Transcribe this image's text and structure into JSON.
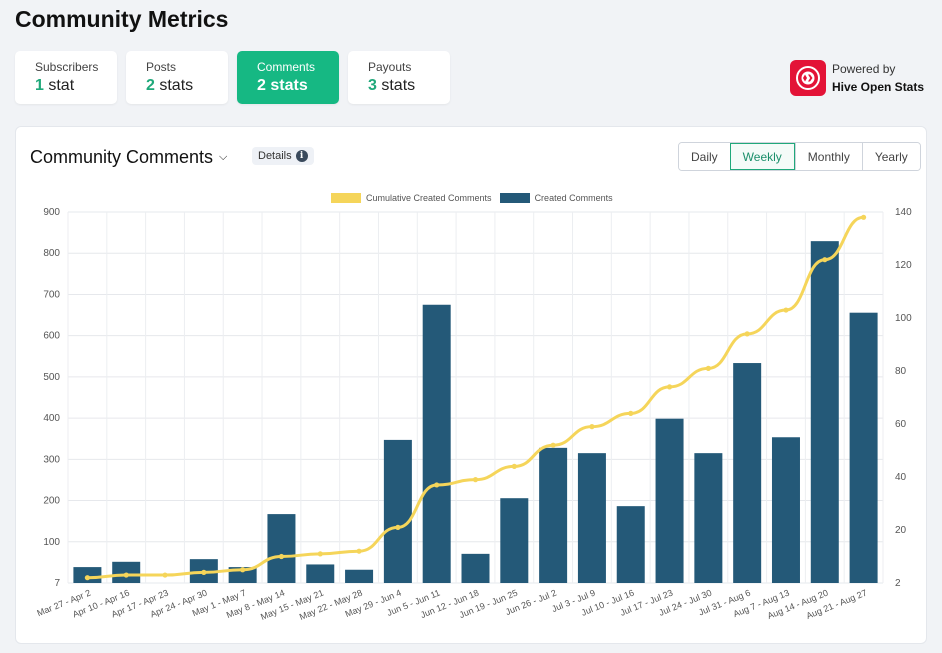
{
  "page": {
    "title": "Community Metrics"
  },
  "stat_tabs": [
    {
      "label": "Subscribers",
      "count": "1",
      "unit": "stat",
      "active": false
    },
    {
      "label": "Posts",
      "count": "2",
      "unit": "stats",
      "active": false
    },
    {
      "label": "Comments",
      "count": "2",
      "unit": "stats",
      "active": true
    },
    {
      "label": "Payouts",
      "count": "3",
      "unit": "stats",
      "active": false
    }
  ],
  "powered_by": {
    "prefix": "Powered by",
    "name": "Hive Open Stats"
  },
  "card": {
    "title": "Community Comments",
    "details_label": "Details",
    "periods": [
      "Daily",
      "Weekly",
      "Monthly",
      "Yearly"
    ],
    "active_period": "Weekly"
  },
  "colors": {
    "accent": "#16b883",
    "bar": "#245978",
    "line": "#f5d55a",
    "hive": "#e31337"
  },
  "chart_data": {
    "type": "bar",
    "categories": [
      "Mar 27 - Apr 2",
      "Apr 10 - Apr 16",
      "Apr 17 - Apr 23",
      "Apr 24 - Apr 30",
      "May 1 - May 7",
      "May 8 - May 14",
      "May 15 - May 21",
      "May 22 - May 28",
      "May 29 - Jun 4",
      "Jun 5 - Jun 11",
      "Jun 12 - Jun 18",
      "Jun 19 - Jun 25",
      "Jun 26 - Jul 2",
      "Jul 3 - Jul 9",
      "Jul 10 - Jul 16",
      "Jul 17 - Jul 23",
      "Jul 24 - Jul 30",
      "Jul 31 - Aug 6",
      "Aug 7 - Aug 13",
      "Aug 14 - Aug 20",
      "Aug 21 - Aug 27"
    ],
    "series": [
      {
        "name": "Created Comments",
        "type": "bar",
        "axis": "left",
        "values": [
          6,
          8,
          0,
          9,
          6,
          26,
          7,
          5,
          54,
          105,
          11,
          32,
          51,
          49,
          29,
          62,
          49,
          83,
          55,
          129,
          102
        ]
      },
      {
        "name": "Cumulative Created Comments",
        "type": "line",
        "axis": "right",
        "values": [
          2,
          3,
          3,
          4,
          5,
          10,
          11,
          12,
          21,
          37,
          39,
          44,
          52,
          59,
          64,
          74,
          81,
          94,
          103,
          122,
          138
        ]
      }
    ],
    "left_axis": {
      "ticks": [
        "7",
        "100",
        "200",
        "300",
        "400",
        "500",
        "600",
        "700",
        "800",
        "900"
      ]
    },
    "right_axis": {
      "ticks": [
        "2",
        "20",
        "40",
        "60",
        "80",
        "100",
        "120",
        "140"
      ]
    },
    "grid": true,
    "legend_position": "top-center"
  }
}
